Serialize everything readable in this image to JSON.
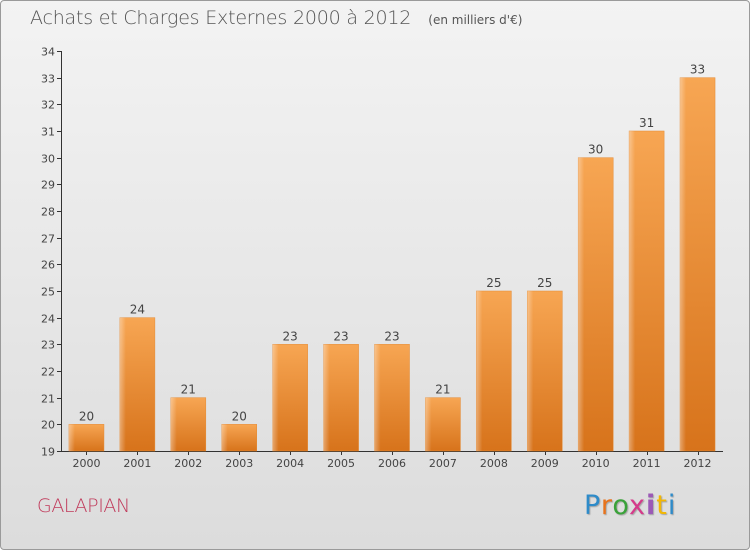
{
  "chart_data": {
    "type": "bar",
    "title": "Achats et Charges Externes 2000 à 2012",
    "unit_note": "(en milliers d'€)",
    "categories": [
      "2000",
      "2001",
      "2002",
      "2003",
      "2004",
      "2005",
      "2006",
      "2007",
      "2008",
      "2009",
      "2010",
      "2011",
      "2012"
    ],
    "values": [
      20,
      24,
      21,
      20,
      23,
      23,
      23,
      21,
      25,
      25,
      30,
      31,
      33
    ],
    "ylim": [
      19,
      34
    ],
    "yticks": [
      19,
      20,
      21,
      22,
      23,
      24,
      25,
      26,
      27,
      28,
      29,
      30,
      31,
      32,
      33,
      34
    ],
    "xlabel": "",
    "ylabel": "",
    "bar_color": "#f0912e",
    "grid": false,
    "data_labels": true
  },
  "footer": {
    "commune": "GALAPIAN",
    "brand": "Proxiti"
  }
}
